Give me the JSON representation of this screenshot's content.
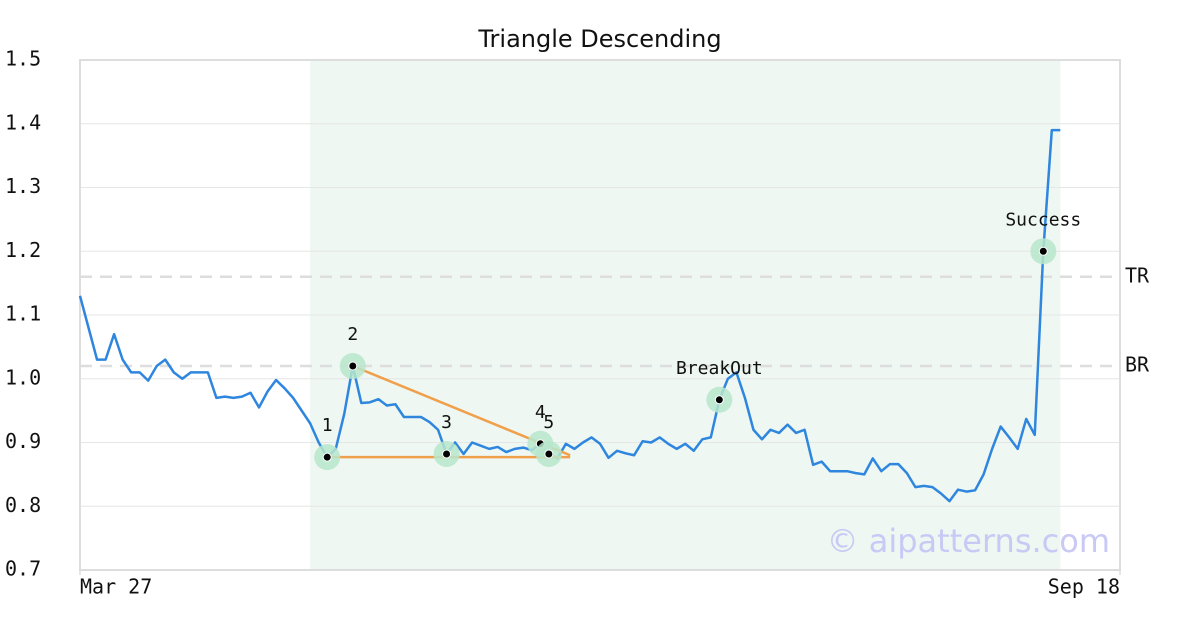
{
  "chart_data": {
    "type": "line",
    "title": "Triangle Descending",
    "x": [
      0,
      1,
      2,
      3,
      4,
      5,
      6,
      7,
      8,
      9,
      10,
      11,
      12,
      13,
      14,
      15,
      16,
      17,
      18,
      19,
      20,
      21,
      22,
      23,
      24,
      25,
      26,
      27,
      28,
      29,
      30,
      31,
      32,
      33,
      34,
      35,
      36,
      37,
      38,
      39,
      40,
      41,
      42,
      43,
      44,
      45,
      46,
      47,
      48,
      49,
      50,
      51,
      52,
      53,
      54,
      55,
      56,
      57,
      58,
      59,
      60,
      61,
      62,
      63,
      64,
      65,
      66,
      67,
      68,
      69,
      70,
      71,
      72,
      73,
      74,
      75,
      76,
      77,
      78,
      79,
      80,
      81,
      82,
      83,
      84,
      85,
      86,
      87,
      88,
      89,
      90,
      91,
      92,
      93,
      94,
      95,
      96,
      97,
      98,
      99,
      100,
      101,
      102,
      103,
      104,
      105,
      106,
      107,
      108,
      109,
      110,
      111,
      112,
      113,
      114,
      115
    ],
    "series": [
      {
        "color": "#2e86de",
        "values": [
          1.13,
          1.08,
          1.03,
          1.03,
          1.07,
          1.03,
          1.01,
          1.01,
          0.997,
          1.02,
          1.03,
          1.01,
          1.0,
          1.01,
          1.01,
          1.01,
          0.97,
          0.972,
          0.97,
          0.972,
          0.978,
          0.955,
          0.98,
          0.998,
          0.985,
          0.97,
          0.95,
          0.93,
          0.9,
          0.877,
          0.89,
          0.945,
          1.02,
          0.962,
          0.963,
          0.968,
          0.958,
          0.96,
          0.94,
          0.94,
          0.94,
          0.932,
          0.92,
          0.882,
          0.9,
          0.882,
          0.9,
          0.895,
          0.89,
          0.893,
          0.885,
          0.89,
          0.892,
          0.888,
          0.898,
          0.882,
          0.875,
          0.898,
          0.89,
          0.9,
          0.908,
          0.898,
          0.876,
          0.887,
          0.883,
          0.88,
          0.902,
          0.9,
          0.908,
          0.898,
          0.89,
          0.898,
          0.887,
          0.905,
          0.908,
          0.967,
          1.0,
          1.01,
          0.97,
          0.92,
          0.905,
          0.92,
          0.915,
          0.928,
          0.915,
          0.92,
          0.865,
          0.87,
          0.855,
          0.855,
          0.855,
          0.852,
          0.85,
          0.875,
          0.855,
          0.866,
          0.866,
          0.852,
          0.83,
          0.832,
          0.83,
          0.82,
          0.808,
          0.826,
          0.823,
          0.825,
          0.85,
          0.89,
          0.925,
          0.908,
          0.89,
          0.937,
          0.912,
          1.2,
          1.39,
          1.39
        ]
      }
    ],
    "xlim": [
      0,
      122
    ],
    "xticks": [
      {
        "value": 0,
        "label": "Mar 27"
      },
      {
        "value": 122,
        "label": "Sep 18"
      }
    ],
    "ylim": [
      0.7,
      1.5
    ],
    "yticks": [
      0.7,
      0.8,
      0.9,
      {
        "value": 1,
        "label": "1.0"
      },
      1.1,
      1.2,
      1.3,
      1.4,
      1.5
    ],
    "grid": true,
    "highlight": [
      27,
      115
    ],
    "highlight_color": "#eef7f2",
    "reference_lines": [
      {
        "label": "TR",
        "value": 1.16
      },
      {
        "label": "BR",
        "value": 1.02
      }
    ],
    "trend_lines": [
      {
        "color": "#f0a04b",
        "x": [
          29,
          57.5
        ],
        "y": [
          0.877,
          0.877
        ]
      },
      {
        "color": "#f0a04b",
        "x": [
          32,
          57.5
        ],
        "y": [
          1.02,
          0.88
        ]
      }
    ],
    "annotations": [
      {
        "label": "1",
        "x": 29,
        "y": 0.877
      },
      {
        "label": "2",
        "x": 32,
        "y": 1.02
      },
      {
        "label": "3",
        "x": 43,
        "y": 0.882
      },
      {
        "label": "4",
        "x": 54,
        "y": 0.898
      },
      {
        "label": "5",
        "x": 55,
        "y": 0.882
      },
      {
        "label": "BreakOut",
        "x": 75,
        "y": 0.967
      },
      {
        "label": "Success",
        "x": 113,
        "y": 1.2
      }
    ],
    "watermark": "© aipatterns.com"
  }
}
